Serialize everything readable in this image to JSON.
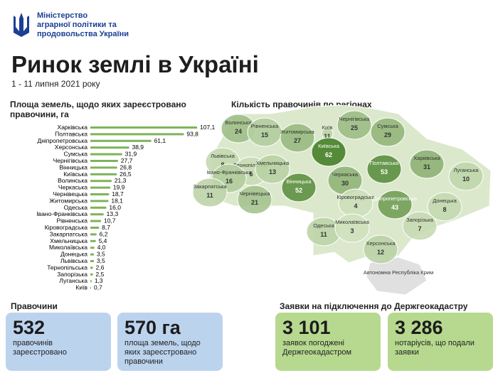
{
  "header": {
    "ministry": [
      "Міністерство",
      "аграрної політики та",
      "продовольства України"
    ],
    "title": "Ринок землі в Україні",
    "subtitle": "1 - 11 липня 2021 року"
  },
  "chart_data": {
    "type": "bar",
    "orientation": "horizontal",
    "title": "Площа земель, щодо яких зареєстровано правочини, га",
    "color": "#7fb35a",
    "categories": [
      "Харківська",
      "Полтавська",
      "Дніпропетровська",
      "Херсонська",
      "Сумська",
      "Чернігівська",
      "Вінницька",
      "Київська",
      "Волинська",
      "Черкаська",
      "Чернівецька",
      "Житомирська",
      "Одеська",
      "Івано-Франківська",
      "Рівненська",
      "Кіровоградська",
      "Закарпатська",
      "Хмельницька",
      "Миколаївська",
      "Донецька",
      "Львівська",
      "Тернопільська",
      "Запорізька",
      "Луганська",
      "Київ"
    ],
    "values": [
      107.1,
      93.8,
      61.1,
      38.9,
      31.9,
      27.7,
      26.8,
      26.5,
      21.3,
      19.9,
      18.7,
      18.1,
      16.0,
      13.3,
      10.7,
      8.7,
      6.2,
      5.4,
      4.0,
      3.5,
      3.5,
      2.6,
      2.5,
      1.3,
      0.7
    ],
    "value_labels": [
      "107,1",
      "93,8",
      "61,1",
      "38,9",
      "31,9",
      "27,7",
      "26,8",
      "26,5",
      "21,3",
      "19,9",
      "18,7",
      "18,1",
      "16,0",
      "13,3",
      "10,7",
      "8,7",
      "6,2",
      "5,4",
      "4,0",
      "3,5",
      "3,5",
      "2,6",
      "2,5",
      "1,3",
      "0,7"
    ]
  },
  "map": {
    "title": "Кількість правочинів по регіонах",
    "regions": [
      {
        "name": "Волинська",
        "value": 24
      },
      {
        "name": "Рівненська",
        "value": 15
      },
      {
        "name": "Житомирська",
        "value": 27
      },
      {
        "name": "Київ",
        "value": 11
      },
      {
        "name": "Київська",
        "value": 62
      },
      {
        "name": "Чернігівська",
        "value": 25
      },
      {
        "name": "Сумська",
        "value": 29
      },
      {
        "name": "Львівська",
        "value": 8
      },
      {
        "name": "Тернопільська",
        "value": 6
      },
      {
        "name": "Хмельницька",
        "value": 13
      },
      {
        "name": "Івано-Франківська",
        "value": 16
      },
      {
        "name": "Закарпатська",
        "value": 11
      },
      {
        "name": "Чернівецька",
        "value": 21
      },
      {
        "name": "Вінницька",
        "value": 52
      },
      {
        "name": "Черкаська",
        "value": 30
      },
      {
        "name": "Полтавська",
        "value": 53
      },
      {
        "name": "Харківська",
        "value": 31
      },
      {
        "name": "Луганська",
        "value": 10
      },
      {
        "name": "Кіровоградська",
        "value": 4
      },
      {
        "name": "Дніпропетровська",
        "value": 43
      },
      {
        "name": "Донецька",
        "value": 8
      },
      {
        "name": "Одеська",
        "value": 11
      },
      {
        "name": "Миколаївська",
        "value": 3
      },
      {
        "name": "Запорізька",
        "value": 7
      },
      {
        "name": "Херсонська",
        "value": 12
      },
      {
        "name": "Автономна Республіка Крим"
      }
    ]
  },
  "cards_left": {
    "title": "Правочини",
    "items": [
      {
        "value": "532",
        "label": "правочинів зареєстровано"
      },
      {
        "value": "570 га",
        "label": "площа земель, щодо яких зареєстровано правочини"
      }
    ]
  },
  "cards_right": {
    "title": "Заявки на підключення до Держгеокадастру",
    "items": [
      {
        "value": "3 101",
        "label": "заявок погоджені Держгеокадастром"
      },
      {
        "value": "3 286",
        "label": "нотаріусів, що подали заявки"
      }
    ]
  }
}
